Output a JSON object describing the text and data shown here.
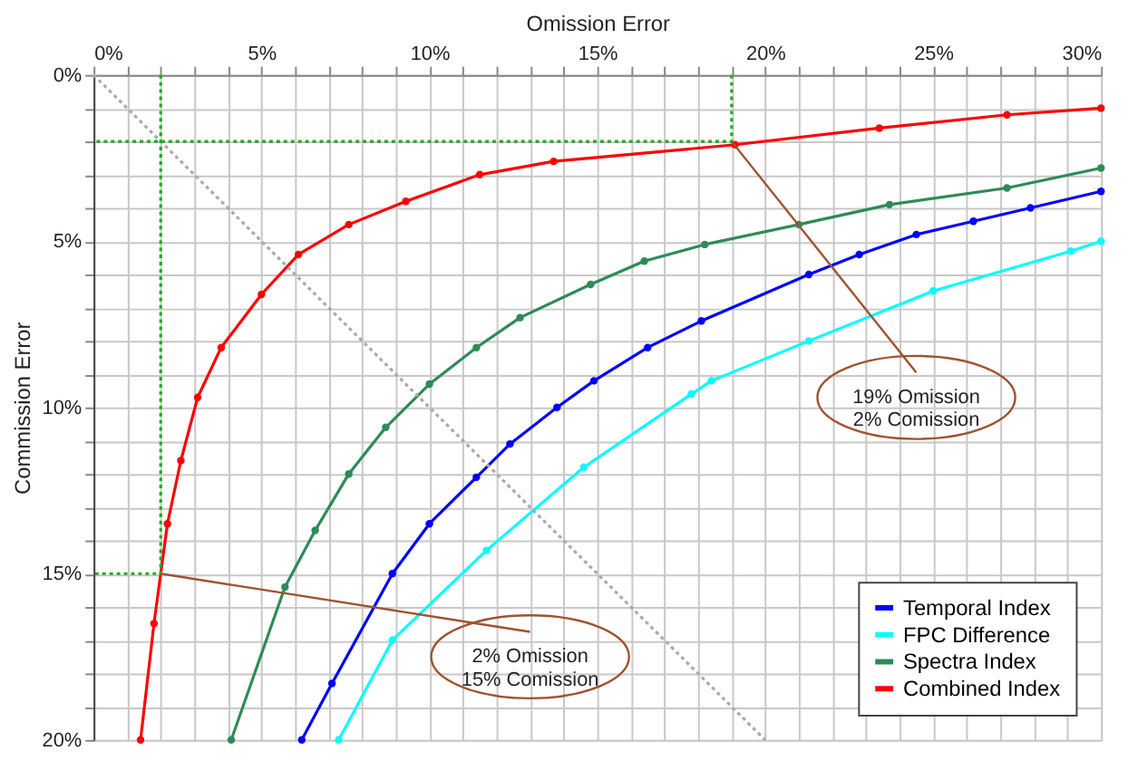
{
  "chart_data": {
    "type": "line",
    "xlabel": "Omission Error",
    "ylabel": "Commission Error",
    "xlim": [
      0,
      30
    ],
    "ylim": [
      20,
      0
    ],
    "xticks": [
      {
        "value": 0,
        "label": "0%"
      },
      {
        "value": 1,
        "label": null
      },
      {
        "value": 2,
        "label": null
      },
      {
        "value": 3,
        "label": null
      },
      {
        "value": 4,
        "label": null
      },
      {
        "value": 5,
        "label": "5%"
      },
      {
        "value": 6,
        "label": null
      },
      {
        "value": 7,
        "label": null
      },
      {
        "value": 8,
        "label": null
      },
      {
        "value": 9,
        "label": null
      },
      {
        "value": 10,
        "label": "10%"
      },
      {
        "value": 11,
        "label": null
      },
      {
        "value": 12,
        "label": null
      },
      {
        "value": 13,
        "label": null
      },
      {
        "value": 14,
        "label": null
      },
      {
        "value": 15,
        "label": "15%"
      },
      {
        "value": 16,
        "label": null
      },
      {
        "value": 17,
        "label": null
      },
      {
        "value": 18,
        "label": null
      },
      {
        "value": 19,
        "label": null
      },
      {
        "value": 20,
        "label": "20%"
      },
      {
        "value": 21,
        "label": null
      },
      {
        "value": 22,
        "label": null
      },
      {
        "value": 23,
        "label": null
      },
      {
        "value": 24,
        "label": null
      },
      {
        "value": 25,
        "label": "25%"
      },
      {
        "value": 26,
        "label": null
      },
      {
        "value": 27,
        "label": null
      },
      {
        "value": 28,
        "label": null
      },
      {
        "value": 29,
        "label": null
      },
      {
        "value": 30,
        "label": "30%"
      }
    ],
    "yticks": [
      {
        "value": 0,
        "label": "0%"
      },
      {
        "value": 1,
        "label": null
      },
      {
        "value": 2,
        "label": null
      },
      {
        "value": 3,
        "label": null
      },
      {
        "value": 4,
        "label": null
      },
      {
        "value": 5,
        "label": "5%"
      },
      {
        "value": 6,
        "label": null
      },
      {
        "value": 7,
        "label": null
      },
      {
        "value": 8,
        "label": null
      },
      {
        "value": 9,
        "label": null
      },
      {
        "value": 10,
        "label": "10%"
      },
      {
        "value": 11,
        "label": null
      },
      {
        "value": 12,
        "label": null
      },
      {
        "value": 13,
        "label": null
      },
      {
        "value": 14,
        "label": null
      },
      {
        "value": 15,
        "label": "15%"
      },
      {
        "value": 16,
        "label": null
      },
      {
        "value": 17,
        "label": null
      },
      {
        "value": 18,
        "label": null
      },
      {
        "value": 19,
        "label": null
      },
      {
        "value": 20,
        "label": "20%"
      }
    ],
    "grid": true,
    "legend": "bottom right",
    "marker": "circle",
    "line_style": "solid",
    "series": [
      {
        "name": "Temporal Index",
        "color": "#0000ff",
        "x": [
          6.2,
          7.1,
          8.9,
          10.0,
          11.4,
          12.4,
          13.8,
          14.9,
          16.5,
          18.1,
          21.3,
          22.8,
          24.5,
          26.2,
          27.9,
          30
        ],
        "values": [
          20,
          18.3,
          15,
          13.5,
          12.1,
          11.1,
          10,
          9.2,
          8.2,
          7.4,
          6.0,
          5.4,
          4.8,
          4.4,
          4.0,
          3.5
        ]
      },
      {
        "name": "FPC Difference",
        "color": "#00ffff",
        "x": [
          7.3,
          8.9,
          11.7,
          14.6,
          17.8,
          18.4,
          21.3,
          25.0,
          29.1,
          30
        ],
        "values": [
          20,
          17.0,
          14.3,
          11.8,
          9.6,
          9.2,
          8.0,
          6.5,
          5.3,
          5.0
        ]
      },
      {
        "name": "Spectra Index",
        "color": "#2e8b57",
        "x": [
          4.1,
          5.7,
          6.6,
          7.6,
          8.7,
          10.0,
          11.4,
          12.7,
          14.8,
          16.4,
          18.2,
          21.0,
          23.7,
          27.2,
          30
        ],
        "values": [
          20,
          15.4,
          13.7,
          12,
          10.6,
          9.3,
          8.2,
          7.3,
          6.3,
          5.6,
          5.1,
          4.5,
          3.9,
          3.4,
          2.8
        ]
      },
      {
        "name": "Combined Index",
        "color": "#ff0000",
        "x": [
          1.4,
          1.8,
          2.2,
          2.6,
          3.1,
          3.8,
          5.0,
          6.1,
          7.6,
          9.3,
          11.5,
          13.7,
          19.1,
          23.4,
          27.2,
          30
        ],
        "values": [
          20,
          16.5,
          13.5,
          11.6,
          9.7,
          8.2,
          6.6,
          5.4,
          4.5,
          3.8,
          3.0,
          2.6,
          2.1,
          1.6,
          1.2,
          1.0
        ]
      },
      {
        "color": "#aaaaaa",
        "line_style": "dotted",
        "marker": "none",
        "x": [
          0,
          20
        ],
        "values": [
          0,
          20
        ]
      },
      {
        "color": "#22aa22",
        "line_style": "dotted",
        "marker": "none",
        "x": [
          2,
          2,
          0
        ],
        "values": [
          0,
          15,
          15
        ]
      },
      {
        "color": "#22aa22",
        "line_style": "dotted",
        "marker": "none",
        "x": [
          19,
          19,
          0
        ],
        "values": [
          0,
          2,
          2
        ]
      }
    ],
    "annotations": [
      {
        "text": "19% Omission\n2% Comission",
        "x": 19,
        "y": 2
      },
      {
        "text": "2% Omission\n15% Comission",
        "x": 2,
        "y": 15
      }
    ]
  }
}
